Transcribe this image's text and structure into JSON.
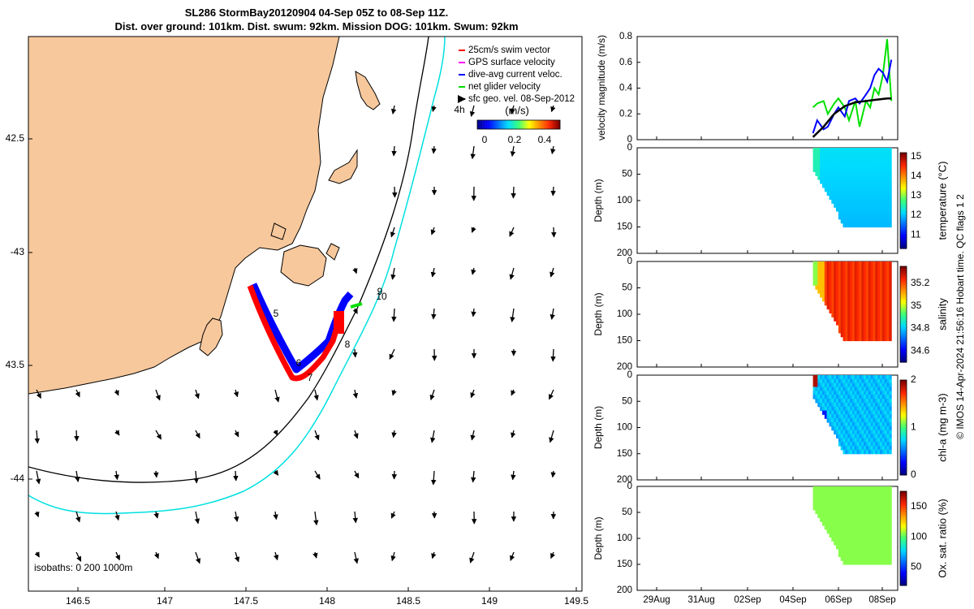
{
  "title": {
    "line1": "SL286 StormBay20120904 04-Sep 05Z to 08-Sep 11Z.",
    "line2": "Dist. over ground: 101km. Dist. swum: 92km. Mission DOG: 101km. Swum: 92km"
  },
  "map": {
    "lon_ticks": [
      "146.5",
      "147",
      "147.5",
      "148",
      "148.5",
      "149",
      "149.5"
    ],
    "lat_ticks": [
      "42.5",
      "-43",
      "43.5",
      "-44"
    ],
    "legend": [
      {
        "label": "25cm/s swim vector",
        "color": "#ff0000"
      },
      {
        "label": "GPS surface velocity",
        "color": "#ff00ff"
      },
      {
        "label": "dive-avg current veloc.",
        "color": "#0000ff"
      },
      {
        "label": "net glider velocity",
        "color": "#00e000"
      },
      {
        "label": "sfc geo. vel. 08-Sep-2012",
        "color": "#000000"
      }
    ],
    "colorbar_title": "(m/s)",
    "colorbar_ticks": [
      "0",
      "0.2",
      "0.4"
    ],
    "isobath_label": "isobaths: 0   200  1000m",
    "track_labels": [
      "4h",
      "5",
      "6",
      "7",
      "8",
      "9",
      "10"
    ],
    "colors": {
      "land": "#f7c89c",
      "isobath200": "#000000",
      "isobath1000": "#00e0e0"
    }
  },
  "chart_data": [
    {
      "type": "line",
      "title": "",
      "ylabel": "velocity magnitude (m/s)",
      "ylim": [
        0,
        0.8
      ],
      "yticks": [
        "0",
        "0.2",
        "0.4",
        "0.6",
        "0.8"
      ],
      "xlim_days": [
        26,
        38
      ],
      "series": [
        {
          "color": "#00e000",
          "x": [
            34.3,
            34.5,
            34.8,
            35.0,
            35.3,
            35.5,
            35.8,
            36.0,
            36.3,
            36.5,
            36.8,
            37.0,
            37.2,
            37.4,
            37.6,
            37.8,
            38.0
          ],
          "values": [
            0.25,
            0.28,
            0.3,
            0.2,
            0.28,
            0.32,
            0.25,
            0.15,
            0.3,
            0.1,
            0.3,
            0.25,
            0.4,
            0.35,
            0.5,
            0.78,
            0.3
          ]
        },
        {
          "color": "#0000ff",
          "x": [
            34.3,
            34.5,
            34.8,
            35.0,
            35.3,
            35.5,
            35.8,
            36.0,
            36.3,
            36.5,
            36.8,
            37.0,
            37.2,
            37.4,
            37.6,
            37.8,
            38.0
          ],
          "values": [
            0.05,
            0.15,
            0.08,
            0.1,
            0.2,
            0.25,
            0.18,
            0.3,
            0.32,
            0.28,
            0.35,
            0.4,
            0.5,
            0.55,
            0.52,
            0.45,
            0.62
          ]
        },
        {
          "color": "#000000",
          "x": [
            34.3,
            34.8,
            35.3,
            35.8,
            36.3,
            36.8,
            37.3,
            37.8,
            38.0
          ],
          "values": [
            0.02,
            0.1,
            0.2,
            0.26,
            0.29,
            0.3,
            0.31,
            0.32,
            0.32
          ]
        }
      ]
    },
    {
      "type": "heatmap",
      "ylabel": "Depth (m)",
      "yticks": [
        "0",
        "50",
        "100",
        "150",
        "200"
      ],
      "colorbar_label": "temperature (°C)",
      "colorbar_ticks": [
        "11",
        "12",
        "13",
        "14",
        "15"
      ],
      "clim": [
        10.3,
        15.2
      ]
    },
    {
      "type": "heatmap",
      "ylabel": "Depth (m)",
      "yticks": [
        "0",
        "50",
        "100",
        "150",
        "200"
      ],
      "colorbar_label": "salinity",
      "colorbar_ticks": [
        "34.6",
        "34.8",
        "35",
        "35.2"
      ],
      "clim": [
        34.5,
        35.35
      ]
    },
    {
      "type": "heatmap",
      "ylabel": "Depth (m)",
      "yticks": [
        "0",
        "50",
        "100",
        "150",
        "200"
      ],
      "colorbar_label": "chl-a (mg m-3)",
      "colorbar_ticks": [
        "0",
        "1",
        "2"
      ],
      "clim": [
        0,
        2
      ]
    },
    {
      "type": "heatmap",
      "ylabel": "Depth (m)",
      "yticks": [
        "0",
        "50",
        "100",
        "150",
        "200"
      ],
      "colorbar_label": "Ox. sat. ratio (%)",
      "colorbar_ticks": [
        "50",
        "100",
        "150"
      ],
      "clim": [
        20,
        175
      ]
    }
  ],
  "time_axis": {
    "labels": [
      "29Aug",
      "31Aug",
      "02Sep",
      "04Sep",
      "06Sep",
      "08Sep"
    ]
  },
  "side_caption": "© IMOS 14-Apr-2024 21:56:16 Hobart time. QC flags 1  2"
}
